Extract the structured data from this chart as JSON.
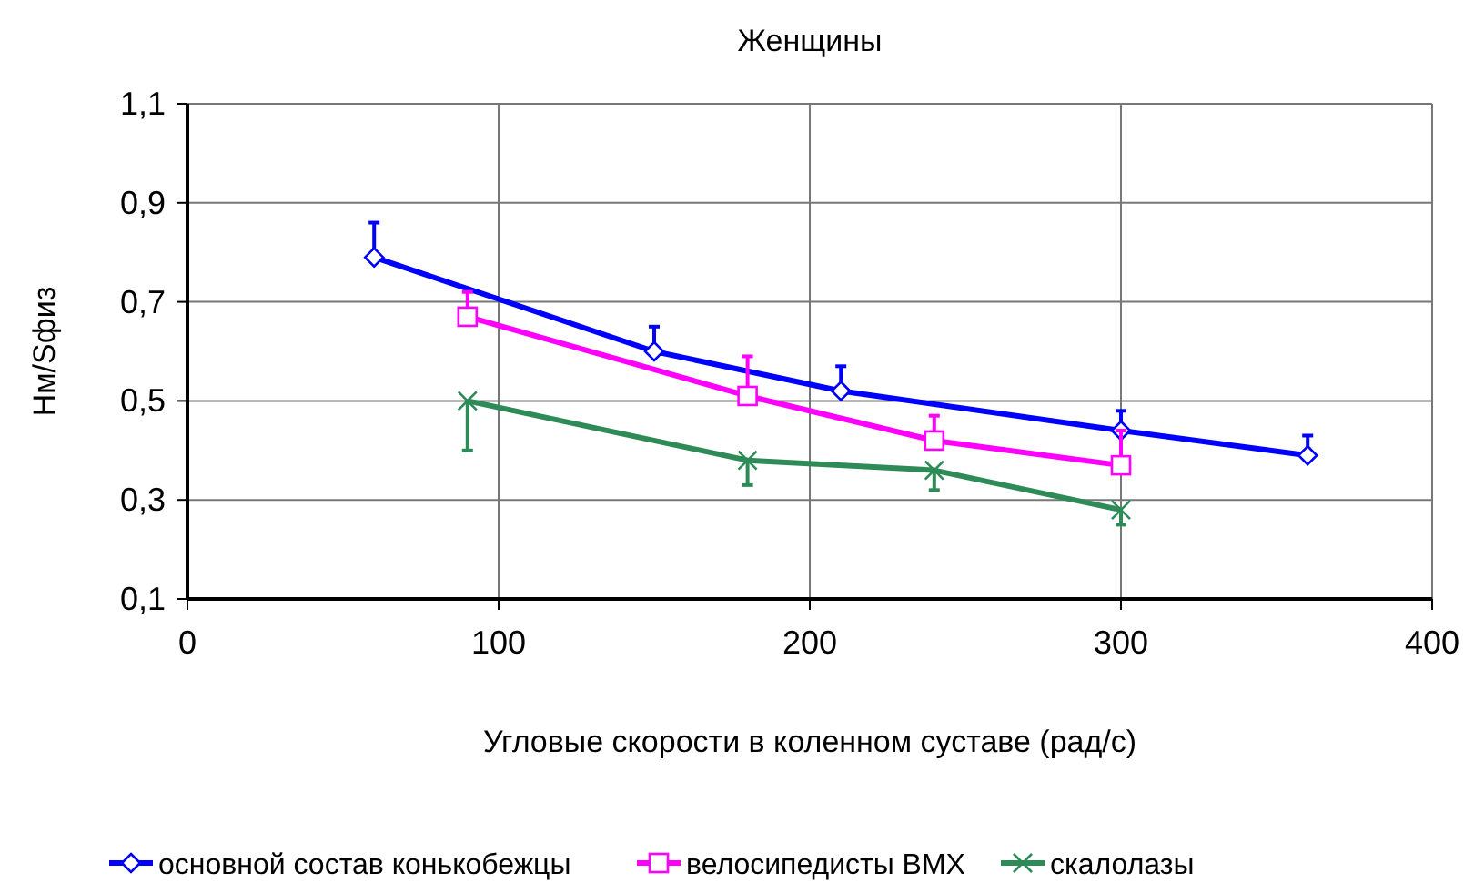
{
  "chart_data": {
    "type": "line",
    "title": "Женщины",
    "xlabel": "Угловые скорости в коленном суставе (рад/с)",
    "ylabel": "Нм/Sфиз",
    "xlim": [
      0,
      400
    ],
    "xticks": [
      0,
      100,
      200,
      300,
      400
    ],
    "ylim": [
      0.1,
      1.1
    ],
    "yticks": [
      {
        "value": 0.1,
        "label": "0,1"
      },
      {
        "value": 0.3,
        "label": "0,3"
      },
      {
        "value": 0.5,
        "label": "0,5"
      },
      {
        "value": 0.7,
        "label": "0,7"
      },
      {
        "value": 0.9,
        "label": "0,9"
      },
      {
        "value": 1.1,
        "label": "1,1"
      }
    ],
    "grid": true,
    "legend": "bottom",
    "line_style": "solid",
    "series": [
      {
        "name": "основной состав конькобежцы",
        "color": "#0000ff",
        "marker": "diamond",
        "x": [
          60,
          150,
          210,
          300,
          360
        ],
        "values": [
          0.79,
          0.6,
          0.52,
          0.44,
          0.39
        ],
        "errors": [
          [
            0.79,
            0.86
          ],
          [
            0.6,
            0.65
          ],
          [
            0.52,
            0.57
          ],
          [
            0.44,
            0.48
          ],
          [
            0.39,
            0.43
          ]
        ]
      },
      {
        "name": "велосипедисты BMX",
        "color": "#ff00ff",
        "marker": "square",
        "x": [
          90,
          180,
          240,
          300
        ],
        "values": [
          0.67,
          0.51,
          0.42,
          0.37
        ],
        "errors": [
          [
            0.67,
            0.72
          ],
          [
            0.51,
            0.59
          ],
          [
            0.42,
            0.47
          ],
          [
            0.37,
            0.44
          ]
        ]
      },
      {
        "name": "скалолазы",
        "color": "#2e8b57",
        "marker": "cross",
        "x": [
          90,
          180,
          240,
          300
        ],
        "values": [
          0.5,
          0.38,
          0.36,
          0.28
        ],
        "errors": [
          [
            0.4,
            0.5
          ],
          [
            0.33,
            0.38
          ],
          [
            0.32,
            0.36
          ],
          [
            0.25,
            0.28
          ]
        ]
      }
    ]
  }
}
